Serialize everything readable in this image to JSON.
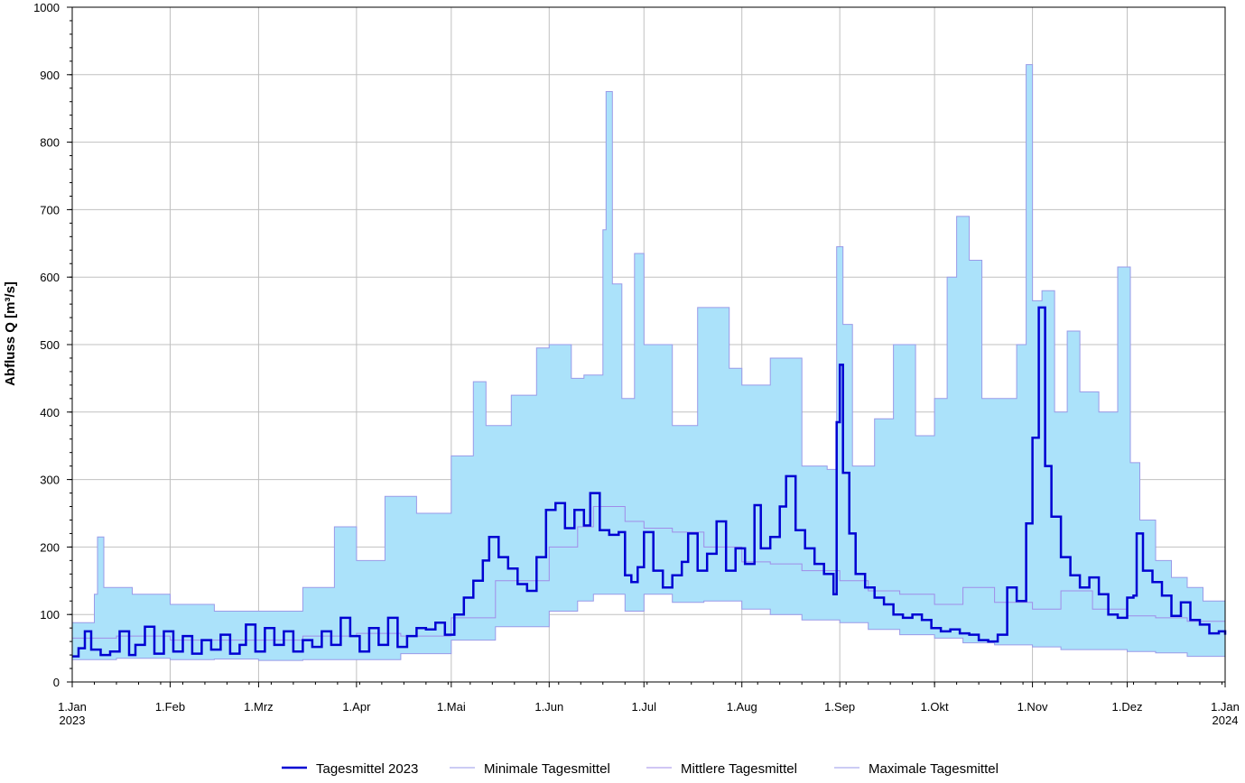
{
  "chart_data": {
    "type": "line",
    "title": "",
    "ylabel": "Abfluss Q [m³/s]",
    "xlabel": "",
    "ylim": [
      0,
      1000
    ],
    "yticks": [
      0,
      100,
      200,
      300,
      400,
      500,
      600,
      700,
      800,
      900,
      1000
    ],
    "x_range": [
      "2023-01-01",
      "2024-01-01"
    ],
    "x_ticks": [
      {
        "date": "2023-01-01",
        "label": "1.Jan",
        "sublabel": "2023"
      },
      {
        "date": "2023-02-01",
        "label": "1.Feb",
        "sublabel": ""
      },
      {
        "date": "2023-03-01",
        "label": "1.Mrz",
        "sublabel": ""
      },
      {
        "date": "2023-04-01",
        "label": "1.Apr",
        "sublabel": ""
      },
      {
        "date": "2023-05-01",
        "label": "1.Mai",
        "sublabel": ""
      },
      {
        "date": "2023-06-01",
        "label": "1.Jun",
        "sublabel": ""
      },
      {
        "date": "2023-07-01",
        "label": "1.Jul",
        "sublabel": ""
      },
      {
        "date": "2023-08-01",
        "label": "1.Aug",
        "sublabel": ""
      },
      {
        "date": "2023-09-01",
        "label": "1.Sep",
        "sublabel": ""
      },
      {
        "date": "2023-10-01",
        "label": "1.Okt",
        "sublabel": ""
      },
      {
        "date": "2023-11-01",
        "label": "1.Nov",
        "sublabel": ""
      },
      {
        "date": "2023-12-01",
        "label": "1.Dez",
        "sublabel": ""
      },
      {
        "date": "2024-01-01",
        "label": "1.Jan",
        "sublabel": "2024"
      }
    ],
    "grid": true,
    "legend_position": "bottom",
    "colors": {
      "band_fill": "#abe2fa",
      "band_edge": "#9a9ae8",
      "mean": "#a08ce8",
      "current": "#0000d2",
      "grid": "#c0c0c0"
    },
    "series": [
      {
        "name": "Tagesmittel 2023",
        "role": "current",
        "points": [
          [
            "2023-01-01",
            38
          ],
          [
            "2023-01-03",
            50
          ],
          [
            "2023-01-05",
            75
          ],
          [
            "2023-01-07",
            48
          ],
          [
            "2023-01-10",
            40
          ],
          [
            "2023-01-13",
            45
          ],
          [
            "2023-01-16",
            75
          ],
          [
            "2023-01-19",
            40
          ],
          [
            "2023-01-21",
            55
          ],
          [
            "2023-01-24",
            82
          ],
          [
            "2023-01-27",
            42
          ],
          [
            "2023-01-30",
            75
          ],
          [
            "2023-02-02",
            45
          ],
          [
            "2023-02-05",
            68
          ],
          [
            "2023-02-08",
            42
          ],
          [
            "2023-02-11",
            62
          ],
          [
            "2023-02-14",
            48
          ],
          [
            "2023-02-17",
            70
          ],
          [
            "2023-02-20",
            42
          ],
          [
            "2023-02-23",
            55
          ],
          [
            "2023-02-25",
            85
          ],
          [
            "2023-02-28",
            45
          ],
          [
            "2023-03-03",
            80
          ],
          [
            "2023-03-06",
            55
          ],
          [
            "2023-03-09",
            75
          ],
          [
            "2023-03-12",
            45
          ],
          [
            "2023-03-15",
            62
          ],
          [
            "2023-03-18",
            52
          ],
          [
            "2023-03-21",
            75
          ],
          [
            "2023-03-24",
            55
          ],
          [
            "2023-03-27",
            95
          ],
          [
            "2023-03-30",
            68
          ],
          [
            "2023-04-02",
            45
          ],
          [
            "2023-04-05",
            80
          ],
          [
            "2023-04-08",
            55
          ],
          [
            "2023-04-11",
            95
          ],
          [
            "2023-04-14",
            52
          ],
          [
            "2023-04-17",
            68
          ],
          [
            "2023-04-20",
            80
          ],
          [
            "2023-04-23",
            78
          ],
          [
            "2023-04-26",
            88
          ],
          [
            "2023-04-29",
            70
          ],
          [
            "2023-05-02",
            100
          ],
          [
            "2023-05-05",
            125
          ],
          [
            "2023-05-08",
            150
          ],
          [
            "2023-05-11",
            180
          ],
          [
            "2023-05-13",
            215
          ],
          [
            "2023-05-16",
            185
          ],
          [
            "2023-05-19",
            168
          ],
          [
            "2023-05-22",
            145
          ],
          [
            "2023-05-25",
            135
          ],
          [
            "2023-05-28",
            185
          ],
          [
            "2023-05-31",
            255
          ],
          [
            "2023-06-03",
            265
          ],
          [
            "2023-06-06",
            228
          ],
          [
            "2023-06-09",
            255
          ],
          [
            "2023-06-12",
            232
          ],
          [
            "2023-06-14",
            280
          ],
          [
            "2023-06-17",
            225
          ],
          [
            "2023-06-20",
            218
          ],
          [
            "2023-06-23",
            222
          ],
          [
            "2023-06-25",
            158
          ],
          [
            "2023-06-27",
            148
          ],
          [
            "2023-06-29",
            170
          ],
          [
            "2023-07-01",
            222
          ],
          [
            "2023-07-04",
            165
          ],
          [
            "2023-07-07",
            140
          ],
          [
            "2023-07-10",
            158
          ],
          [
            "2023-07-13",
            178
          ],
          [
            "2023-07-15",
            220
          ],
          [
            "2023-07-18",
            165
          ],
          [
            "2023-07-21",
            190
          ],
          [
            "2023-07-24",
            238
          ],
          [
            "2023-07-27",
            165
          ],
          [
            "2023-07-30",
            198
          ],
          [
            "2023-08-02",
            175
          ],
          [
            "2023-08-05",
            262
          ],
          [
            "2023-08-07",
            198
          ],
          [
            "2023-08-10",
            215
          ],
          [
            "2023-08-13",
            260
          ],
          [
            "2023-08-15",
            305
          ],
          [
            "2023-08-18",
            225
          ],
          [
            "2023-08-21",
            198
          ],
          [
            "2023-08-24",
            175
          ],
          [
            "2023-08-27",
            160
          ],
          [
            "2023-08-30",
            130
          ],
          [
            "2023-08-31",
            385
          ],
          [
            "2023-09-01",
            470
          ],
          [
            "2023-09-02",
            310
          ],
          [
            "2023-09-04",
            220
          ],
          [
            "2023-09-06",
            160
          ],
          [
            "2023-09-09",
            140
          ],
          [
            "2023-09-12",
            125
          ],
          [
            "2023-09-15",
            115
          ],
          [
            "2023-09-18",
            100
          ],
          [
            "2023-09-21",
            95
          ],
          [
            "2023-09-24",
            100
          ],
          [
            "2023-09-27",
            92
          ],
          [
            "2023-09-30",
            80
          ],
          [
            "2023-10-03",
            75
          ],
          [
            "2023-10-06",
            78
          ],
          [
            "2023-10-09",
            72
          ],
          [
            "2023-10-12",
            70
          ],
          [
            "2023-10-15",
            62
          ],
          [
            "2023-10-18",
            60
          ],
          [
            "2023-10-21",
            70
          ],
          [
            "2023-10-24",
            140
          ],
          [
            "2023-10-27",
            120
          ],
          [
            "2023-10-30",
            235
          ],
          [
            "2023-11-01",
            362
          ],
          [
            "2023-11-03",
            555
          ],
          [
            "2023-11-05",
            320
          ],
          [
            "2023-11-07",
            245
          ],
          [
            "2023-11-10",
            185
          ],
          [
            "2023-11-13",
            158
          ],
          [
            "2023-11-16",
            140
          ],
          [
            "2023-11-19",
            155
          ],
          [
            "2023-11-22",
            130
          ],
          [
            "2023-11-25",
            100
          ],
          [
            "2023-11-28",
            95
          ],
          [
            "2023-12-01",
            125
          ],
          [
            "2023-12-03",
            128
          ],
          [
            "2023-12-04",
            220
          ],
          [
            "2023-12-06",
            165
          ],
          [
            "2023-12-09",
            148
          ],
          [
            "2023-12-12",
            128
          ],
          [
            "2023-12-15",
            98
          ],
          [
            "2023-12-18",
            118
          ],
          [
            "2023-12-21",
            92
          ],
          [
            "2023-12-24",
            85
          ],
          [
            "2023-12-27",
            72
          ],
          [
            "2023-12-30",
            75
          ],
          [
            "2024-01-01",
            70
          ]
        ]
      },
      {
        "name": "Minimale Tagesmittel",
        "role": "lower",
        "points": [
          [
            "2023-01-01",
            33
          ],
          [
            "2023-01-15",
            35
          ],
          [
            "2023-02-01",
            33
          ],
          [
            "2023-02-15",
            34
          ],
          [
            "2023-03-01",
            32
          ],
          [
            "2023-03-15",
            33
          ],
          [
            "2023-04-01",
            33
          ],
          [
            "2023-04-15",
            42
          ],
          [
            "2023-05-01",
            62
          ],
          [
            "2023-05-15",
            82
          ],
          [
            "2023-06-01",
            105
          ],
          [
            "2023-06-10",
            120
          ],
          [
            "2023-06-15",
            130
          ],
          [
            "2023-06-25",
            105
          ],
          [
            "2023-07-01",
            130
          ],
          [
            "2023-07-10",
            118
          ],
          [
            "2023-07-20",
            120
          ],
          [
            "2023-08-01",
            108
          ],
          [
            "2023-08-10",
            100
          ],
          [
            "2023-08-20",
            92
          ],
          [
            "2023-09-01",
            88
          ],
          [
            "2023-09-10",
            78
          ],
          [
            "2023-09-20",
            70
          ],
          [
            "2023-10-01",
            65
          ],
          [
            "2023-10-10",
            58
          ],
          [
            "2023-10-20",
            55
          ],
          [
            "2023-11-01",
            52
          ],
          [
            "2023-11-10",
            48
          ],
          [
            "2023-11-20",
            48
          ],
          [
            "2023-12-01",
            45
          ],
          [
            "2023-12-10",
            43
          ],
          [
            "2023-12-20",
            38
          ],
          [
            "2024-01-01",
            33
          ]
        ]
      },
      {
        "name": "Mittlere Tagesmittel",
        "role": "mean",
        "points": [
          [
            "2023-01-01",
            65
          ],
          [
            "2023-01-15",
            68
          ],
          [
            "2023-02-01",
            62
          ],
          [
            "2023-02-15",
            62
          ],
          [
            "2023-03-01",
            62
          ],
          [
            "2023-03-15",
            68
          ],
          [
            "2023-04-01",
            72
          ],
          [
            "2023-04-15",
            68
          ],
          [
            "2023-05-01",
            95
          ],
          [
            "2023-05-15",
            150
          ],
          [
            "2023-06-01",
            200
          ],
          [
            "2023-06-10",
            230
          ],
          [
            "2023-06-15",
            260
          ],
          [
            "2023-06-25",
            238
          ],
          [
            "2023-07-01",
            228
          ],
          [
            "2023-07-10",
            222
          ],
          [
            "2023-07-20",
            200
          ],
          [
            "2023-08-01",
            178
          ],
          [
            "2023-08-10",
            175
          ],
          [
            "2023-08-20",
            165
          ],
          [
            "2023-09-01",
            150
          ],
          [
            "2023-09-10",
            135
          ],
          [
            "2023-09-20",
            130
          ],
          [
            "2023-10-01",
            115
          ],
          [
            "2023-10-10",
            140
          ],
          [
            "2023-10-20",
            118
          ],
          [
            "2023-11-01",
            108
          ],
          [
            "2023-11-10",
            135
          ],
          [
            "2023-11-20",
            108
          ],
          [
            "2023-12-01",
            98
          ],
          [
            "2023-12-10",
            95
          ],
          [
            "2023-12-20",
            90
          ],
          [
            "2024-01-01",
            70
          ]
        ]
      },
      {
        "name": "Maximale Tagesmittel",
        "role": "upper",
        "points": [
          [
            "2023-01-01",
            88
          ],
          [
            "2023-01-08",
            130
          ],
          [
            "2023-01-09",
            215
          ],
          [
            "2023-01-11",
            140
          ],
          [
            "2023-01-20",
            130
          ],
          [
            "2023-02-01",
            115
          ],
          [
            "2023-02-15",
            105
          ],
          [
            "2023-03-01",
            105
          ],
          [
            "2023-03-15",
            140
          ],
          [
            "2023-03-25",
            230
          ],
          [
            "2023-04-01",
            180
          ],
          [
            "2023-04-10",
            275
          ],
          [
            "2023-04-20",
            250
          ],
          [
            "2023-05-01",
            335
          ],
          [
            "2023-05-08",
            445
          ],
          [
            "2023-05-12",
            380
          ],
          [
            "2023-05-20",
            425
          ],
          [
            "2023-05-28",
            495
          ],
          [
            "2023-06-01",
            500
          ],
          [
            "2023-06-08",
            450
          ],
          [
            "2023-06-12",
            455
          ],
          [
            "2023-06-18",
            670
          ],
          [
            "2023-06-19",
            875
          ],
          [
            "2023-06-21",
            590
          ],
          [
            "2023-06-24",
            420
          ],
          [
            "2023-06-28",
            635
          ],
          [
            "2023-07-01",
            500
          ],
          [
            "2023-07-10",
            380
          ],
          [
            "2023-07-18",
            555
          ],
          [
            "2023-07-28",
            465
          ],
          [
            "2023-08-01",
            440
          ],
          [
            "2023-08-10",
            480
          ],
          [
            "2023-08-20",
            320
          ],
          [
            "2023-08-28",
            315
          ],
          [
            "2023-08-31",
            645
          ],
          [
            "2023-09-02",
            530
          ],
          [
            "2023-09-05",
            320
          ],
          [
            "2023-09-12",
            390
          ],
          [
            "2023-09-18",
            500
          ],
          [
            "2023-09-25",
            365
          ],
          [
            "2023-10-01",
            420
          ],
          [
            "2023-10-05",
            600
          ],
          [
            "2023-10-08",
            690
          ],
          [
            "2023-10-12",
            625
          ],
          [
            "2023-10-16",
            420
          ],
          [
            "2023-10-22",
            420
          ],
          [
            "2023-10-27",
            500
          ],
          [
            "2023-10-30",
            915
          ],
          [
            "2023-11-01",
            565
          ],
          [
            "2023-11-04",
            580
          ],
          [
            "2023-11-08",
            400
          ],
          [
            "2023-11-12",
            520
          ],
          [
            "2023-11-16",
            430
          ],
          [
            "2023-11-22",
            400
          ],
          [
            "2023-11-28",
            615
          ],
          [
            "2023-12-02",
            325
          ],
          [
            "2023-12-05",
            240
          ],
          [
            "2023-12-10",
            180
          ],
          [
            "2023-12-15",
            155
          ],
          [
            "2023-12-20",
            140
          ],
          [
            "2023-12-25",
            120
          ],
          [
            "2024-01-01",
            108
          ]
        ]
      }
    ]
  }
}
